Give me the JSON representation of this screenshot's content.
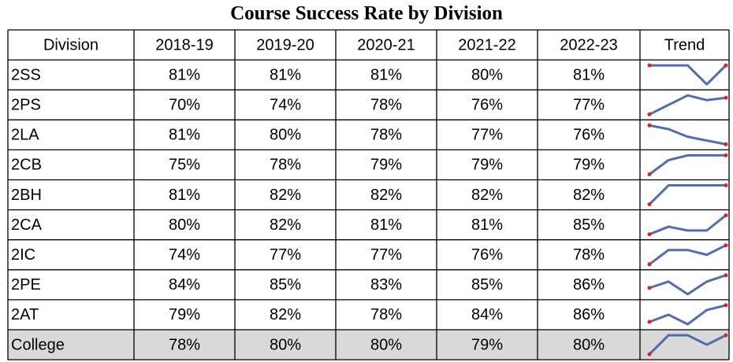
{
  "title": "Course Success Rate by Division",
  "table": {
    "header": [
      "Division",
      "2018-19",
      "2019-20",
      "2020-21",
      "2021-22",
      "2022-23",
      "Trend"
    ],
    "rows": [
      {
        "division": "2SS",
        "values": [
          81,
          81,
          81,
          80,
          81
        ],
        "value_labels": [
          "81%",
          "81%",
          "81%",
          "80%",
          "81%"
        ]
      },
      {
        "division": "2PS",
        "values": [
          70,
          74,
          78,
          76,
          77
        ],
        "value_labels": [
          "70%",
          "74%",
          "78%",
          "76%",
          "77%"
        ]
      },
      {
        "division": "2LA",
        "values": [
          81,
          80,
          78,
          77,
          76
        ],
        "value_labels": [
          "81%",
          "80%",
          "78%",
          "77%",
          "76%"
        ]
      },
      {
        "division": "2CB",
        "values": [
          75,
          78,
          79,
          79,
          79
        ],
        "value_labels": [
          "75%",
          "78%",
          "79%",
          "79%",
          "79%"
        ]
      },
      {
        "division": "2BH",
        "values": [
          81,
          82,
          82,
          82,
          82
        ],
        "value_labels": [
          "81%",
          "82%",
          "82%",
          "82%",
          "82%"
        ]
      },
      {
        "division": "2CA",
        "values": [
          80,
          82,
          81,
          81,
          85
        ],
        "value_labels": [
          "80%",
          "82%",
          "81%",
          "81%",
          "85%"
        ]
      },
      {
        "division": "2IC",
        "values": [
          74,
          77,
          77,
          76,
          78
        ],
        "value_labels": [
          "74%",
          "77%",
          "77%",
          "76%",
          "78%"
        ]
      },
      {
        "division": "2PE",
        "values": [
          84,
          85,
          83,
          85,
          86
        ],
        "value_labels": [
          "84%",
          "85%",
          "83%",
          "85%",
          "86%"
        ]
      },
      {
        "division": "2AT",
        "values": [
          79,
          82,
          78,
          84,
          86
        ],
        "value_labels": [
          "79%",
          "82%",
          "78%",
          "84%",
          "86%"
        ]
      },
      {
        "division": "College",
        "values": [
          78,
          80,
          80,
          79,
          80
        ],
        "value_labels": [
          "78%",
          "80%",
          "80%",
          "79%",
          "80%"
        ]
      }
    ]
  }
}
